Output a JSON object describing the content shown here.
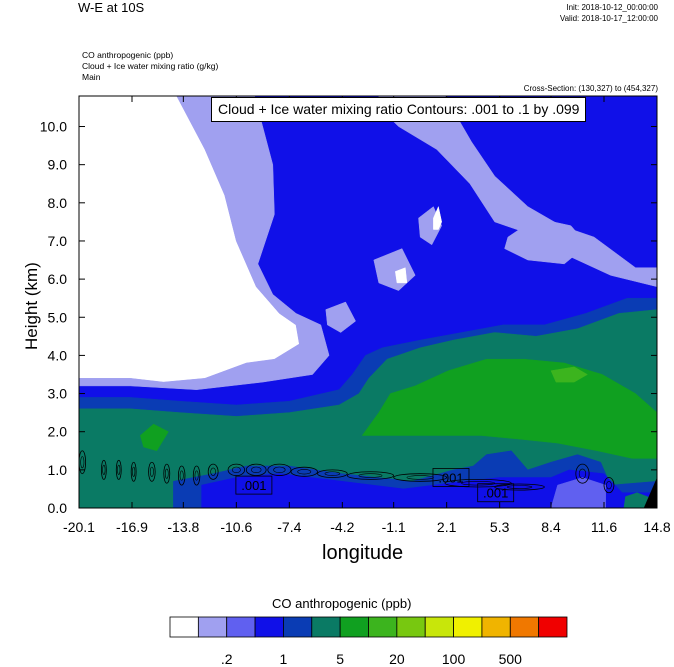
{
  "header": {
    "title": "W-E at 10S",
    "init": "Init: 2018-10-12_00:00:00",
    "valid": "Valid: 2018-10-17_12:00:00",
    "field1": "CO anthropogenic   (ppb)",
    "field2": "Cloud + Ice water mixing ratio   (g/kg)",
    "field3": "Main",
    "cross_section": "Cross-Section: (130,327) to (454,327)"
  },
  "contour_info": "Cloud + Ice water mixing ratio Contours: .001 to .1 by .099",
  "colorbar": {
    "title": "CO anthropogenic  (ppb)",
    "colors": [
      "#ffffff",
      "#a0a0f0",
      "#6060f0",
      "#1010e8",
      "#0a3cb4",
      "#0a7a64",
      "#10a020",
      "#3cb41e",
      "#78c810",
      "#c8e60a",
      "#f0f000",
      "#f0b400",
      "#f07800",
      "#f00000"
    ],
    "labels": [
      {
        "boundary": 2,
        "text": ".2"
      },
      {
        "boundary": 4,
        "text": "1"
      },
      {
        "boundary": 6,
        "text": "5"
      },
      {
        "boundary": 8,
        "text": "20"
      },
      {
        "boundary": 10,
        "text": "100"
      },
      {
        "boundary": 12,
        "text": "500"
      }
    ]
  },
  "chart_data": {
    "type": "heatmap",
    "title": "W-E at 10S",
    "xlabel": "longitude",
    "ylabel": "Height (km)",
    "xlim": [
      -20.1,
      14.8
    ],
    "ylim": [
      0.0,
      10.8
    ],
    "x_ticks": [
      "-20.1",
      "-16.9",
      "-13.8",
      "-10.6",
      "-7.4",
      "-4.2",
      "-1.1",
      "2.1",
      "5.3",
      "8.4",
      "11.6",
      "14.8"
    ],
    "y_ticks": [
      "0.0",
      "1.0",
      "2.0",
      "3.0",
      "4.0",
      "5.0",
      "6.0",
      "7.0",
      "8.0",
      "9.0",
      "10.0"
    ],
    "x_tick_values": [
      -20.1,
      -16.9,
      -13.8,
      -10.6,
      -7.4,
      -4.2,
      -1.1,
      2.1,
      5.3,
      8.4,
      11.6,
      14.8
    ],
    "y_tick_values": [
      0,
      1,
      2,
      3,
      4,
      5,
      6,
      7,
      8,
      9,
      10
    ],
    "contour_labels": [
      {
        "text": ".001",
        "x": -9.6,
        "y": 0.6
      },
      {
        "text": ".001",
        "x": 2.3,
        "y": 0.8
      },
      {
        "text": ".001",
        "x": 5.0,
        "y": 0.4
      }
    ],
    "regions": [
      {
        "level": 3,
        "points": [
          [
            -20.1,
            0
          ],
          [
            14.8,
            0
          ],
          [
            14.8,
            10.8
          ],
          [
            -20.1,
            10.8
          ]
        ]
      },
      {
        "level": 0,
        "points": [
          [
            -20.1,
            10.8
          ],
          [
            -14.2,
            10.8
          ],
          [
            -12.5,
            9.4
          ],
          [
            -11.3,
            8.2
          ],
          [
            -10.6,
            7.0
          ],
          [
            -9.4,
            5.8
          ],
          [
            -8.0,
            5.1
          ],
          [
            -7.0,
            4.8
          ],
          [
            -6.8,
            4.3
          ],
          [
            -8.3,
            3.9
          ],
          [
            -10.0,
            3.8
          ],
          [
            -12.5,
            3.4
          ],
          [
            -15.0,
            3.3
          ],
          [
            -17.0,
            3.4
          ],
          [
            -20.1,
            3.4
          ]
        ]
      },
      {
        "level": 1,
        "points": [
          [
            -20.1,
            3.4
          ],
          [
            -17.0,
            3.4
          ],
          [
            -15.0,
            3.3
          ],
          [
            -12.5,
            3.4
          ],
          [
            -10.0,
            3.8
          ],
          [
            -8.3,
            3.9
          ],
          [
            -6.8,
            4.3
          ],
          [
            -7.0,
            4.8
          ],
          [
            -8.0,
            5.1
          ],
          [
            -9.4,
            5.8
          ],
          [
            -10.6,
            7.0
          ],
          [
            -11.3,
            8.2
          ],
          [
            -12.5,
            9.4
          ],
          [
            -14.2,
            10.8
          ],
          [
            -9.5,
            10.8
          ],
          [
            -8.4,
            9.0
          ],
          [
            -8.3,
            7.7
          ],
          [
            -9.3,
            6.4
          ],
          [
            -8.4,
            5.6
          ],
          [
            -7.0,
            5.1
          ],
          [
            -5.5,
            4.8
          ],
          [
            -5.0,
            4.0
          ],
          [
            -6.0,
            3.5
          ],
          [
            -9.0,
            3.3
          ],
          [
            -13.0,
            3.1
          ],
          [
            -17.0,
            3.2
          ],
          [
            -20.1,
            3.2
          ]
        ]
      },
      {
        "level": 1,
        "points": [
          [
            -2.0,
            10.8
          ],
          [
            2.0,
            10.8
          ],
          [
            3.6,
            9.6
          ],
          [
            5.0,
            8.7
          ],
          [
            7.0,
            7.9
          ],
          [
            9.0,
            7.4
          ],
          [
            11.0,
            7.1
          ],
          [
            13.5,
            6.3
          ],
          [
            14.8,
            6.3
          ],
          [
            14.8,
            5.8
          ],
          [
            12.0,
            6.1
          ],
          [
            9.5,
            6.6
          ],
          [
            7.0,
            7.2
          ],
          [
            5.0,
            7.5
          ],
          [
            3.5,
            8.5
          ],
          [
            1.5,
            9.4
          ],
          [
            -0.8,
            10.0
          ],
          [
            -2.0,
            10.5
          ]
        ]
      },
      {
        "level": 1,
        "points": [
          [
            5.8,
            7.1
          ],
          [
            7.5,
            7.6
          ],
          [
            9.6,
            7.4
          ],
          [
            10.6,
            6.9
          ],
          [
            9.2,
            6.4
          ],
          [
            7.0,
            6.5
          ],
          [
            5.6,
            6.8
          ]
        ]
      },
      {
        "level": 1,
        "points": [
          [
            0.4,
            7.6
          ],
          [
            1.3,
            7.9
          ],
          [
            1.8,
            7.4
          ],
          [
            1.2,
            6.9
          ],
          [
            0.5,
            7.1
          ]
        ]
      },
      {
        "level": 0,
        "points": [
          [
            1.3,
            7.6
          ],
          [
            1.6,
            7.9
          ],
          [
            1.8,
            7.5
          ],
          [
            1.6,
            7.3
          ],
          [
            1.3,
            7.3
          ]
        ]
      },
      {
        "level": 1,
        "points": [
          [
            -2.3,
            6.5
          ],
          [
            -0.6,
            6.8
          ],
          [
            0.2,
            6.1
          ],
          [
            -0.8,
            5.7
          ],
          [
            -2.0,
            5.9
          ]
        ]
      },
      {
        "level": 0,
        "points": [
          [
            -1.0,
            6.2
          ],
          [
            -0.4,
            6.3
          ],
          [
            -0.3,
            5.9
          ],
          [
            -0.9,
            5.9
          ]
        ]
      },
      {
        "level": 1,
        "points": [
          [
            -5.2,
            5.2
          ],
          [
            -4.0,
            5.4
          ],
          [
            -3.4,
            4.9
          ],
          [
            -4.3,
            4.6
          ],
          [
            -5.1,
            4.8
          ]
        ]
      },
      {
        "level": 4,
        "points": [
          [
            -20.1,
            0
          ],
          [
            14.8,
            0
          ],
          [
            14.8,
            5.5
          ],
          [
            13.0,
            5.5
          ],
          [
            10.5,
            5.1
          ],
          [
            8.0,
            4.8
          ],
          [
            5.5,
            4.8
          ],
          [
            3.0,
            4.6
          ],
          [
            0.5,
            4.4
          ],
          [
            -1.8,
            4.2
          ],
          [
            -2.8,
            4.0
          ],
          [
            -3.6,
            3.5
          ],
          [
            -4.4,
            3.1
          ],
          [
            -7.4,
            2.8
          ],
          [
            -10.6,
            2.7
          ],
          [
            -14.0,
            2.8
          ],
          [
            -17.0,
            2.9
          ],
          [
            -20.1,
            2.9
          ]
        ]
      },
      {
        "level": 5,
        "points": [
          [
            -20.1,
            0
          ],
          [
            14.8,
            0
          ],
          [
            14.8,
            5.2
          ],
          [
            12.5,
            5.1
          ],
          [
            10.0,
            4.7
          ],
          [
            7.5,
            4.5
          ],
          [
            5.0,
            4.6
          ],
          [
            2.5,
            4.4
          ],
          [
            0.5,
            4.2
          ],
          [
            -1.5,
            3.9
          ],
          [
            -2.6,
            3.4
          ],
          [
            -3.2,
            3.0
          ],
          [
            -4.4,
            2.7
          ],
          [
            -7.4,
            2.5
          ],
          [
            -10.6,
            2.4
          ],
          [
            -14.0,
            2.5
          ],
          [
            -17.0,
            2.6
          ],
          [
            -20.1,
            2.6
          ]
        ]
      },
      {
        "level": 6,
        "points": [
          [
            -3.0,
            1.9
          ],
          [
            -2.0,
            2.5
          ],
          [
            -1.3,
            3.0
          ],
          [
            0.2,
            3.2
          ],
          [
            2.2,
            3.6
          ],
          [
            4.5,
            3.9
          ],
          [
            6.8,
            3.9
          ],
          [
            9.2,
            3.8
          ],
          [
            11.5,
            3.5
          ],
          [
            13.5,
            3.0
          ],
          [
            14.8,
            2.5
          ],
          [
            14.8,
            1.3
          ],
          [
            13.3,
            1.3
          ],
          [
            11.2,
            1.5
          ],
          [
            8.8,
            1.7
          ],
          [
            6.6,
            1.8
          ],
          [
            4.2,
            1.9
          ],
          [
            1.8,
            1.9
          ],
          [
            -0.5,
            1.9
          ]
        ]
      },
      {
        "level": 6,
        "points": [
          [
            -16.4,
            1.9
          ],
          [
            -15.6,
            2.2
          ],
          [
            -14.7,
            2.0
          ],
          [
            -15.4,
            1.5
          ],
          [
            -16.2,
            1.6
          ]
        ]
      },
      {
        "level": 7,
        "points": [
          [
            8.4,
            3.6
          ],
          [
            9.8,
            3.7
          ],
          [
            10.6,
            3.5
          ],
          [
            9.8,
            3.3
          ],
          [
            8.7,
            3.3
          ]
        ]
      },
      {
        "level": 4,
        "points": [
          [
            -14.4,
            0
          ],
          [
            14.8,
            0
          ],
          [
            14.8,
            0.7
          ],
          [
            12.0,
            0.6
          ],
          [
            11.4,
            1.2
          ],
          [
            10.0,
            1.4
          ],
          [
            8.4,
            1.2
          ],
          [
            7.0,
            1.0
          ],
          [
            6.0,
            1.5
          ],
          [
            4.5,
            1.4
          ],
          [
            3.7,
            1.1
          ],
          [
            2.5,
            1.0
          ],
          [
            0.0,
            0.7
          ],
          [
            -4.2,
            0.9
          ],
          [
            -7.4,
            1.1
          ],
          [
            -10.0,
            1.1
          ],
          [
            -12.0,
            0.9
          ],
          [
            -14.4,
            0.7
          ]
        ]
      },
      {
        "level": 3,
        "points": [
          [
            -12.7,
            0
          ],
          [
            14.8,
            0
          ],
          [
            14.8,
            0.4
          ],
          [
            12.7,
            0.4
          ],
          [
            11.6,
            0.9
          ],
          [
            9.5,
            1.0
          ],
          [
            8.4,
            0.8
          ],
          [
            5.3,
            0.8
          ],
          [
            3.2,
            0.7
          ],
          [
            -0.5,
            0.5
          ],
          [
            -4.2,
            0.7
          ],
          [
            -8.0,
            0.9
          ],
          [
            -10.6,
            0.8
          ],
          [
            -12.7,
            0.6
          ]
        ]
      },
      {
        "level": 2,
        "points": [
          [
            8.4,
            0
          ],
          [
            11.7,
            0
          ],
          [
            11.7,
            0.6
          ],
          [
            10.3,
            0.8
          ],
          [
            8.8,
            0.6
          ]
        ]
      },
      {
        "level": 5,
        "points": [
          [
            12.8,
            0
          ],
          [
            14.8,
            0
          ],
          [
            14.8,
            0.2
          ],
          [
            13.6,
            0.4
          ],
          [
            12.9,
            0.3
          ]
        ]
      }
    ]
  }
}
